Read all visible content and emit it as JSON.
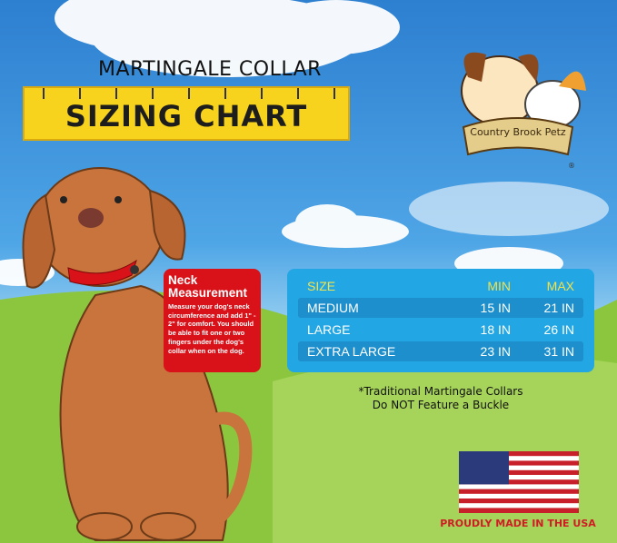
{
  "header": {
    "subtitle": "MARTINGALE COLLAR",
    "title": "SIZING CHART"
  },
  "logo": {
    "text": "Country Brook Petz",
    "mark": "®"
  },
  "neck": {
    "title": "Neck Measurement",
    "body": "Measure your dog's neck circumference and add 1\" - 2\" for comfort. You should be able to fit one or two fingers under the dog's collar when on the dog."
  },
  "table": {
    "headers": [
      "SIZE",
      "MIN",
      "MAX"
    ],
    "rows": [
      [
        "MEDIUM",
        "15 IN",
        "21 IN"
      ],
      [
        "LARGE",
        "18 IN",
        "26 IN"
      ],
      [
        "EXTRA LARGE",
        "23 IN",
        "31 IN"
      ]
    ]
  },
  "note": {
    "line1": "*Traditional Martingale Collars",
    "line2": "Do NOT Feature a Buckle"
  },
  "footer": {
    "made": "PROUDLY MADE IN THE USA"
  },
  "colors": {
    "ruler": "#f7d31d",
    "neck_box": "#d9121a",
    "table": "#22a6e4",
    "table_header_text": "#f3e24a"
  }
}
